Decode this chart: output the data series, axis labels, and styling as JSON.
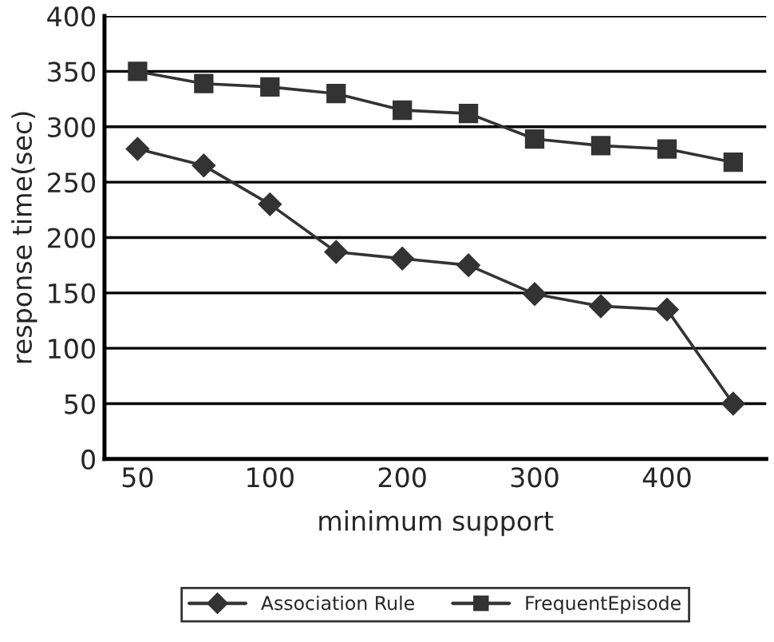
{
  "chart_data": {
    "type": "line",
    "xlabel": "minimum support",
    "ylabel": "response time(sec)",
    "categories": [
      "50",
      null,
      "100",
      null,
      "200",
      null,
      "300",
      null,
      "400",
      null
    ],
    "series": [
      {
        "name": "Association Rule",
        "color": "#333333",
        "marker": "diamond",
        "values": [
          280,
          265,
          230,
          187,
          181,
          175,
          149,
          138,
          135,
          50
        ]
      },
      {
        "name": "FrequentEpisode",
        "color": "#333333",
        "marker": "square",
        "values": [
          350,
          339,
          336,
          330,
          315,
          312,
          289,
          283,
          280,
          268
        ]
      }
    ],
    "ylim": [
      0,
      400
    ],
    "yticks": [
      0,
      50,
      100,
      150,
      200,
      250,
      300,
      350,
      400
    ],
    "grid": "y",
    "legend": "bottom",
    "line_style": "solid"
  }
}
